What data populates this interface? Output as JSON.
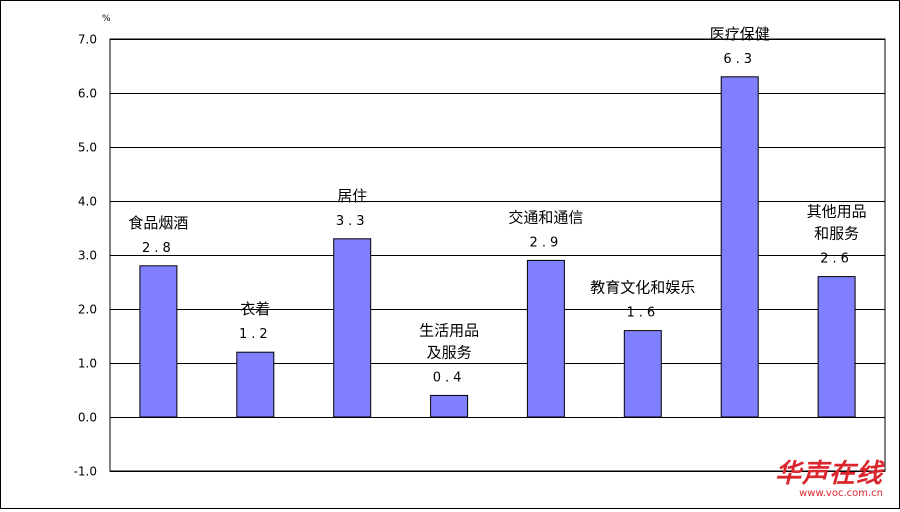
{
  "chart_data": {
    "type": "bar",
    "title": "",
    "xlabel": "",
    "ylabel": "",
    "unit_mark": "%",
    "ylim": [
      -1.0,
      7.0
    ],
    "yticks": [
      -1.0,
      0.0,
      1.0,
      2.0,
      3.0,
      4.0,
      5.0,
      6.0,
      7.0
    ],
    "ytick_labels": [
      "-1.0",
      "0.0",
      "1.0",
      "2.0",
      "3.0",
      "4.0",
      "5.0",
      "6.0",
      "7.0"
    ],
    "grid": true,
    "legend": "none",
    "categories": [
      [
        "食品烟酒"
      ],
      [
        "衣着"
      ],
      [
        "居住"
      ],
      [
        "生活用品",
        "及服务"
      ],
      [
        "交通和通信"
      ],
      [
        "教育文化和娱乐"
      ],
      [
        "医疗保健"
      ],
      [
        "其他用品",
        "和服务"
      ]
    ],
    "values": [
      2.8,
      1.2,
      3.3,
      0.4,
      2.9,
      1.6,
      6.3,
      2.6
    ],
    "value_labels": [
      "2.8",
      "1.2",
      "3.3",
      "0.4",
      "2.9",
      "1.6",
      "6.3",
      "2.6"
    ],
    "colors": {
      "bar": "#8080ff",
      "bar_edge": "#000000",
      "grid": "#000000",
      "text": "#000000"
    }
  },
  "watermark": {
    "logo": "华声在线",
    "url": "www.voc.com.cn"
  }
}
